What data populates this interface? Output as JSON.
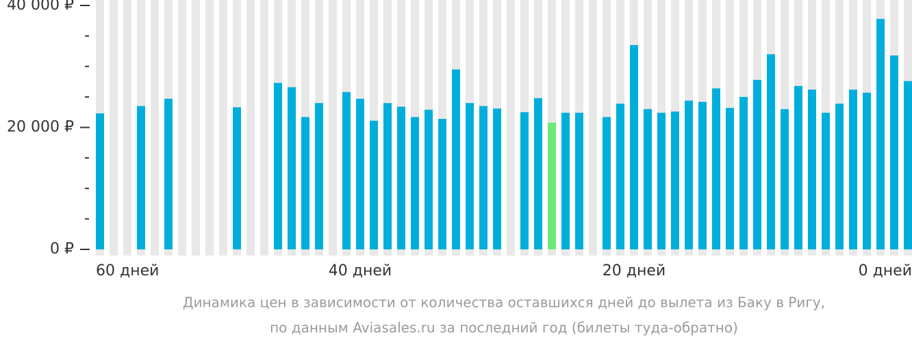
{
  "chart_data": {
    "type": "bar",
    "caption": [
      "Динамика цен в зависимости от количества оставшихся дней до вылета из Баку в Ригу,",
      "по данным Aviasales.ru за последний год (билеты туда-обратно)"
    ],
    "categories": [
      "60 дней",
      null,
      null,
      null,
      null,
      null,
      null,
      null,
      null,
      null,
      null,
      null,
      null,
      null,
      null,
      null,
      null,
      null,
      null,
      "40 дней",
      null,
      null,
      null,
      null,
      null,
      null,
      null,
      null,
      null,
      null,
      null,
      null,
      null,
      null,
      null,
      null,
      null,
      null,
      null,
      "20 дней",
      null,
      null,
      null,
      null,
      null,
      null,
      null,
      null,
      null,
      null,
      null,
      null,
      null,
      null,
      null,
      null,
      null,
      null,
      null,
      "0 дней"
    ],
    "values": [
      22300,
      null,
      null,
      23500,
      null,
      24700,
      null,
      null,
      null,
      null,
      23300,
      null,
      null,
      27300,
      26600,
      21700,
      24000,
      null,
      25800,
      24700,
      21100,
      24000,
      23400,
      21700,
      22900,
      21400,
      29500,
      24000,
      23500,
      23100,
      null,
      22500,
      24800,
      20800,
      22400,
      22400,
      null,
      21700,
      23900,
      33500,
      23000,
      22400,
      22600,
      24400,
      24200,
      26400,
      23200,
      25000,
      27800,
      32000,
      23000,
      26800,
      26200,
      22400,
      23900,
      26200,
      25700,
      37800,
      31800,
      27600
    ],
    "color": "#00aedc",
    "highlight_color": "#6ee879",
    "highlight_index": 33,
    "stripe_color": "#e8e8e8",
    "ylim": [
      0,
      40000
    ],
    "yticks": [
      {
        "value": 0,
        "label": "0 ₽"
      },
      {
        "value": 20000,
        "label": "20 000 ₽"
      },
      {
        "value": 40000,
        "label": "40 000 ₽"
      }
    ],
    "minor_yticks": [
      5000,
      10000,
      15000,
      25000,
      30000,
      35000
    ]
  }
}
